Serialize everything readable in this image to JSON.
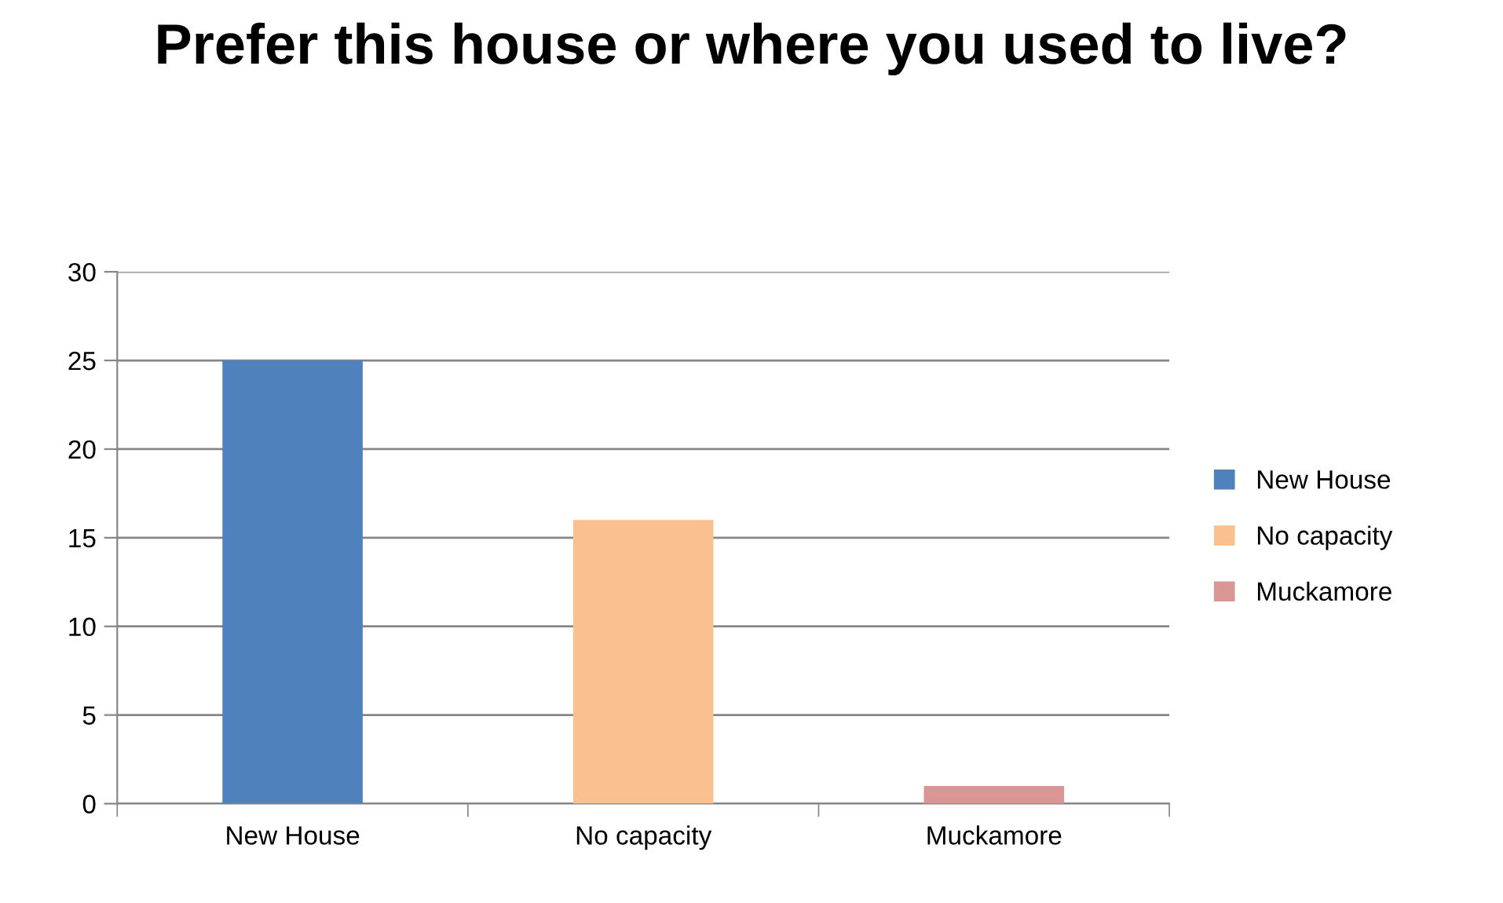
{
  "chart_data": {
    "type": "bar",
    "title": "Prefer this house or where you used to live?",
    "categories": [
      "New House",
      "No capacity",
      "Muckamore"
    ],
    "series": [
      {
        "name": "New House",
        "color": "#4f81bd",
        "values": [
          25,
          null,
          null
        ]
      },
      {
        "name": "No capacity",
        "color": "#fac090",
        "values": [
          null,
          16,
          null
        ]
      },
      {
        "name": "Muckamore",
        "color": "#d99694",
        "values": [
          null,
          null,
          1
        ]
      }
    ],
    "ylim": [
      0,
      30
    ],
    "yticks": [
      0,
      5,
      10,
      15,
      20,
      25,
      30
    ],
    "grid": "y",
    "legend": "right"
  }
}
